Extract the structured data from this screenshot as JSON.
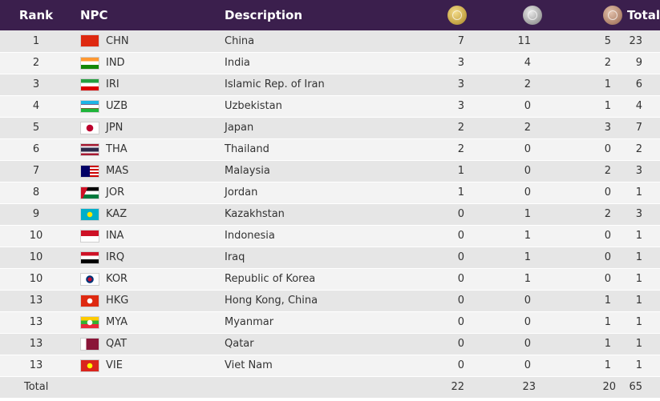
{
  "header": {
    "rank": "Rank",
    "npc": "NPC",
    "description": "Description",
    "gold_icon": "gold-medal-icon",
    "silver_icon": "silver-medal-icon",
    "bronze_icon": "bronze-medal-icon",
    "total": "Total"
  },
  "colors": {
    "header_bg": "#3b1f4d",
    "gold": "#c9a84a",
    "silver": "#a8a8a8",
    "bronze": "#b58a72"
  },
  "rows": [
    {
      "rank": "1",
      "code": "CHN",
      "country": "China",
      "gold": "7",
      "silver": "11",
      "bronze": "5",
      "total": "23",
      "flag": "flag-chn-icon"
    },
    {
      "rank": "2",
      "code": "IND",
      "country": "India",
      "gold": "3",
      "silver": "4",
      "bronze": "2",
      "total": "9",
      "flag": "flag-ind-icon"
    },
    {
      "rank": "3",
      "code": "IRI",
      "country": "Islamic Rep. of Iran",
      "gold": "3",
      "silver": "2",
      "bronze": "1",
      "total": "6",
      "flag": "flag-iri-icon"
    },
    {
      "rank": "4",
      "code": "UZB",
      "country": "Uzbekistan",
      "gold": "3",
      "silver": "0",
      "bronze": "1",
      "total": "4",
      "flag": "flag-uzb-icon"
    },
    {
      "rank": "5",
      "code": "JPN",
      "country": "Japan",
      "gold": "2",
      "silver": "2",
      "bronze": "3",
      "total": "7",
      "flag": "flag-jpn-icon"
    },
    {
      "rank": "6",
      "code": "THA",
      "country": "Thailand",
      "gold": "2",
      "silver": "0",
      "bronze": "0",
      "total": "2",
      "flag": "flag-tha-icon"
    },
    {
      "rank": "7",
      "code": "MAS",
      "country": "Malaysia",
      "gold": "1",
      "silver": "0",
      "bronze": "2",
      "total": "3",
      "flag": "flag-mas-icon"
    },
    {
      "rank": "8",
      "code": "JOR",
      "country": "Jordan",
      "gold": "1",
      "silver": "0",
      "bronze": "0",
      "total": "1",
      "flag": "flag-jor-icon"
    },
    {
      "rank": "9",
      "code": "KAZ",
      "country": "Kazakhstan",
      "gold": "0",
      "silver": "1",
      "bronze": "2",
      "total": "3",
      "flag": "flag-kaz-icon"
    },
    {
      "rank": "10",
      "code": "INA",
      "country": "Indonesia",
      "gold": "0",
      "silver": "1",
      "bronze": "0",
      "total": "1",
      "flag": "flag-ina-icon"
    },
    {
      "rank": "10",
      "code": "IRQ",
      "country": "Iraq",
      "gold": "0",
      "silver": "1",
      "bronze": "0",
      "total": "1",
      "flag": "flag-irq-icon"
    },
    {
      "rank": "10",
      "code": "KOR",
      "country": "Republic of Korea",
      "gold": "0",
      "silver": "1",
      "bronze": "0",
      "total": "1",
      "flag": "flag-kor-icon"
    },
    {
      "rank": "13",
      "code": "HKG",
      "country": "Hong Kong, China",
      "gold": "0",
      "silver": "0",
      "bronze": "1",
      "total": "1",
      "flag": "flag-hkg-icon"
    },
    {
      "rank": "13",
      "code": "MYA",
      "country": "Myanmar",
      "gold": "0",
      "silver": "0",
      "bronze": "1",
      "total": "1",
      "flag": "flag-mya-icon"
    },
    {
      "rank": "13",
      "code": "QAT",
      "country": "Qatar",
      "gold": "0",
      "silver": "0",
      "bronze": "1",
      "total": "1",
      "flag": "flag-qat-icon"
    },
    {
      "rank": "13",
      "code": "VIE",
      "country": "Viet Nam",
      "gold": "0",
      "silver": "0",
      "bronze": "1",
      "total": "1",
      "flag": "flag-vie-icon"
    }
  ],
  "footer": {
    "label": "Total",
    "gold": "22",
    "silver": "23",
    "bronze": "20",
    "total": "65"
  }
}
